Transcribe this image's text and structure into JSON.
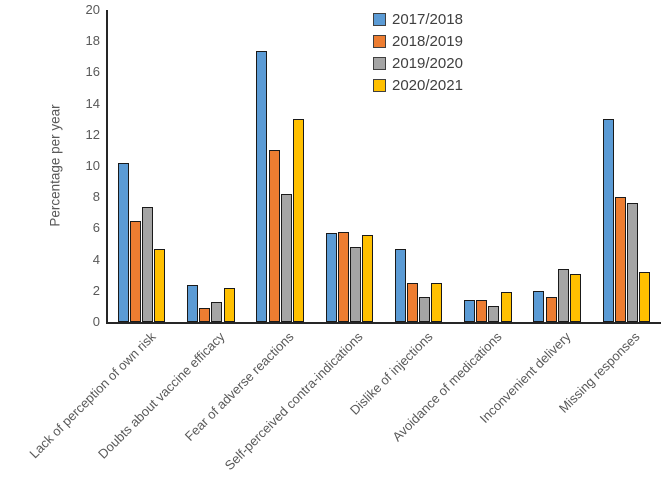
{
  "chart_data": {
    "type": "bar",
    "title": "",
    "xlabel": "",
    "ylabel": "Percentage per year",
    "ylim": [
      0,
      20
    ],
    "ytick_step": 2,
    "grid": false,
    "legend_position": "top-center",
    "categories": [
      "Lack of perception of own risk",
      "Doubts about vaccine efficacy",
      "Fear of adverse reactions",
      "Self-perceived contra-indications",
      "Dislike of injections",
      "Avoidance of medications",
      "Inconvenient delivery",
      "Missing responses"
    ],
    "series": [
      {
        "name": "2017/2018",
        "color": "#5B9BD5",
        "values": [
          10.2,
          2.4,
          17.4,
          5.7,
          4.7,
          1.4,
          2.0,
          13.0
        ]
      },
      {
        "name": "2018/2019",
        "color": "#ED7D31",
        "values": [
          6.5,
          0.9,
          11.0,
          5.8,
          2.5,
          1.4,
          1.6,
          8.0
        ]
      },
      {
        "name": "2019/2020",
        "color": "#A5A5A5",
        "values": [
          7.4,
          1.3,
          8.2,
          4.8,
          1.6,
          1.0,
          3.4,
          7.6
        ]
      },
      {
        "name": "2020/2021",
        "color": "#FFC000",
        "values": [
          4.7,
          2.2,
          13.0,
          5.6,
          2.5,
          1.9,
          3.1,
          3.2
        ]
      }
    ]
  }
}
